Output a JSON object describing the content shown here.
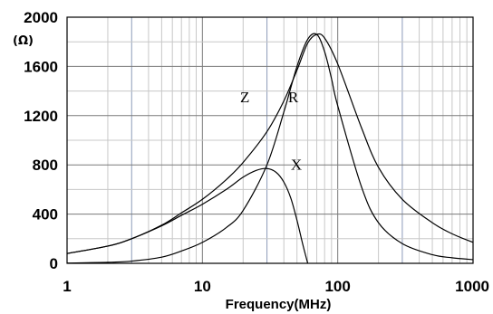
{
  "chart_data": {
    "type": "line",
    "title": "",
    "xlabel": "Frequency(MHz)",
    "ylabel": "",
    "y_unit": "(Ω)",
    "x_scale": "log",
    "xlim": [
      1,
      1000
    ],
    "ylim": [
      0,
      2000
    ],
    "x_ticks": [
      "1",
      "10",
      "100",
      "1000"
    ],
    "y_ticks": [
      "0",
      "400",
      "800",
      "1200",
      "1600",
      "2000"
    ],
    "grid": true,
    "grid_colors": {
      "minor": "#c8c8c8",
      "mid": "#8c9bb8",
      "major": "#7a7a7a"
    },
    "line_color": "#000000",
    "series": [
      {
        "name": "Z",
        "x": [
          1,
          2,
          3,
          5,
          7,
          10,
          15,
          20,
          30,
          40,
          50,
          60,
          70,
          80,
          100,
          150,
          200,
          300,
          500,
          700,
          1000
        ],
        "values": [
          80,
          140,
          200,
          310,
          410,
          520,
          680,
          820,
          1070,
          1320,
          1570,
          1790,
          1860,
          1830,
          1620,
          1100,
          780,
          520,
          330,
          240,
          170
        ]
      },
      {
        "name": "R",
        "x": [
          1,
          2,
          3,
          5,
          7,
          10,
          15,
          20,
          30,
          40,
          50,
          60,
          70,
          80,
          90,
          100,
          150,
          200,
          300,
          500,
          700,
          1000
        ],
        "values": [
          2,
          8,
          18,
          50,
          100,
          170,
          290,
          430,
          800,
          1230,
          1600,
          1820,
          1860,
          1720,
          1500,
          1280,
          620,
          330,
          160,
          70,
          45,
          30
        ]
      },
      {
        "name": "X",
        "x": [
          1,
          2,
          3,
          5,
          7,
          10,
          15,
          20,
          25,
          30,
          35,
          40,
          45,
          50,
          55,
          60
        ],
        "values": [
          80,
          140,
          200,
          305,
          390,
          480,
          600,
          700,
          755,
          770,
          740,
          660,
          530,
          350,
          160,
          0
        ]
      }
    ]
  }
}
